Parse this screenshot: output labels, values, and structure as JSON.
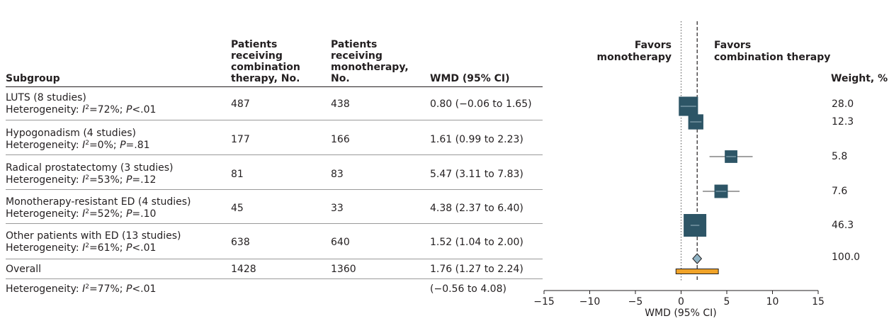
{
  "table": {
    "headers": {
      "subgroup": "Subgroup",
      "combination": [
        "Patients",
        "receiving",
        "combination",
        "therapy, No."
      ],
      "monotherapy": [
        "Patients",
        "receiving",
        "monotherapy,",
        "No."
      ],
      "wmd": "WMD (95% CI)",
      "weight": "Weight, %"
    },
    "rows": [
      {
        "name": "LUTS (8 studies)",
        "het_i2": "72%",
        "het_p": "<.01",
        "combination": "487",
        "monotherapy": "438",
        "wmd_text": "0.80 (−0.06 to 1.65)",
        "weight": "28.0"
      },
      {
        "name": "Hypogonadism (4 studies)",
        "het_i2": "0%",
        "het_p": "=.81",
        "combination": "177",
        "monotherapy": "166",
        "wmd_text": "1.61 (0.99 to 2.23)",
        "weight": "12.3"
      },
      {
        "name": "Radical prostatectomy (3 studies)",
        "het_i2": "53%",
        "het_p": "=.12",
        "combination": "81",
        "monotherapy": "83",
        "wmd_text": "5.47 (3.11 to 7.83)",
        "weight": "5.8"
      },
      {
        "name": "Monotherapy-resistant ED (4 studies)",
        "het_i2": "52%",
        "het_p": "=.10",
        "combination": "45",
        "monotherapy": "33",
        "wmd_text": "4.38 (2.37 to 6.40)",
        "weight": "7.6"
      },
      {
        "name": "Other patients with ED (13 studies)",
        "het_i2": "61%",
        "het_p": "<.01",
        "combination": "638",
        "monotherapy": "640",
        "wmd_text": "1.52 (1.04 to 2.00)",
        "weight": "46.3"
      }
    ],
    "overall": {
      "name": "Overall",
      "combination": "1428",
      "monotherapy": "1360",
      "wmd_text": "1.76 (1.27 to 2.24)",
      "weight": "100.0"
    },
    "overall_het": {
      "het_i2": "77%",
      "het_p": "<.01",
      "pi_text": "(−0.56 to 4.08)"
    },
    "het_prefix": "Heterogeneity:",
    "i2_symbol": "I",
    "i2_sup": "2",
    "p_symbol": "P"
  },
  "chart_data": {
    "type": "forest",
    "xlabel": "WMD (95% CI)",
    "xlim": [
      -15,
      15
    ],
    "xticks": [
      -15,
      -10,
      -5,
      0,
      5,
      10,
      15
    ],
    "reference_line": 0,
    "pooled_line": 1.76,
    "favors_left": [
      "Favors",
      "monotherapy"
    ],
    "favors_right": [
      "Favors",
      "combination therapy"
    ],
    "points": [
      {
        "label": "LUTS",
        "estimate": 0.8,
        "lower": -0.06,
        "upper": 1.65,
        "weight": 28.0
      },
      {
        "label": "Hypogonadism",
        "estimate": 1.61,
        "lower": 0.99,
        "upper": 2.23,
        "weight": 12.3
      },
      {
        "label": "Radical prostatectomy",
        "estimate": 5.47,
        "lower": 3.11,
        "upper": 7.83,
        "weight": 5.8
      },
      {
        "label": "Monotherapy-resistant ED",
        "estimate": 4.38,
        "lower": 2.37,
        "upper": 6.4,
        "weight": 7.6
      },
      {
        "label": "Other patients with ED",
        "estimate": 1.52,
        "lower": 1.04,
        "upper": 2.0,
        "weight": 46.3
      }
    ],
    "overall": {
      "estimate": 1.76,
      "lower": 1.27,
      "upper": 2.24
    },
    "prediction_interval": {
      "lower": -0.56,
      "upper": 4.08
    },
    "colors": {
      "marker": "#2d5566",
      "diamond": "#8fb3c4",
      "prediction": "#f0a329",
      "text": "#231f20"
    }
  }
}
